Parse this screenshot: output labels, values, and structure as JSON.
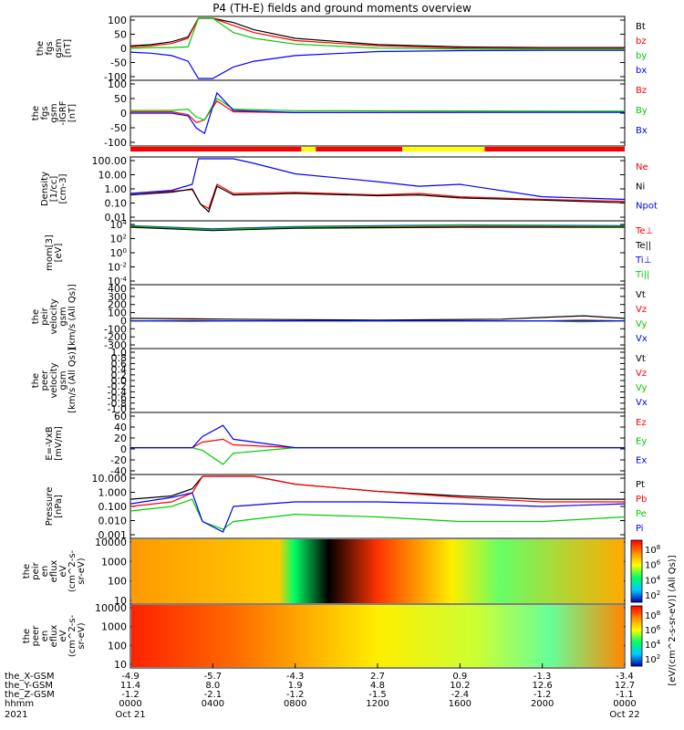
{
  "title": "P4 (TH-E) fields and ground moments overview",
  "chart_data": [
    {
      "type": "line",
      "ylabel": [
        "the",
        "fgs",
        "gsm",
        "[nT]"
      ],
      "yticks": [
        "100",
        "50",
        "0",
        "-50",
        "-100"
      ],
      "ylim": [
        -100,
        110
      ],
      "series": [
        {
          "name": "Bt",
          "color": "#000000",
          "x": [
            0,
            1,
            2,
            2.8,
            3.3,
            4,
            5,
            6,
            8,
            12,
            16,
            20,
            24
          ],
          "y": [
            14,
            18,
            28,
            45,
            110,
            110,
            95,
            70,
            40,
            18,
            10,
            8,
            8
          ]
        },
        {
          "name": "bz",
          "color": "#ff0000",
          "x": [
            0,
            1,
            2,
            2.8,
            3.3,
            4,
            5,
            6,
            8,
            12,
            16,
            20,
            24
          ],
          "y": [
            10,
            14,
            22,
            40,
            110,
            110,
            85,
            60,
            32,
            14,
            6,
            5,
            5
          ]
        },
        {
          "name": "by",
          "color": "#00cc00",
          "x": [
            0,
            1,
            2,
            2.8,
            3.3,
            4,
            5,
            6,
            8,
            12,
            16,
            20,
            24
          ],
          "y": [
            5,
            8,
            8,
            10,
            110,
            110,
            60,
            40,
            20,
            6,
            3,
            2,
            2
          ]
        },
        {
          "name": "bx",
          "color": "#0000ff",
          "x": [
            0,
            1,
            2,
            2.8,
            3.3,
            4,
            5,
            6,
            8,
            12,
            16,
            20,
            24
          ],
          "y": [
            -8,
            -12,
            -20,
            -40,
            -100,
            -100,
            -60,
            -40,
            -20,
            -6,
            -3,
            -2,
            -2
          ]
        }
      ]
    },
    {
      "type": "line",
      "ylabel": [
        "the",
        "fgs",
        "gsm",
        "-IGRF",
        "[nT]"
      ],
      "yticks": [
        "100",
        "50",
        "0",
        "-50",
        "-100"
      ],
      "ylim": [
        -120,
        110
      ],
      "series": [
        {
          "name": "Bz",
          "color": "#ff0000",
          "x": [
            0,
            2,
            2.8,
            3.2,
            3.6,
            4.2,
            5,
            8,
            16,
            24
          ],
          "y": [
            0,
            0,
            -10,
            -40,
            -30,
            40,
            0,
            -3,
            -2,
            -1
          ]
        },
        {
          "name": "By",
          "color": "#00cc00",
          "x": [
            0,
            2,
            2.8,
            3.2,
            3.6,
            4.2,
            5,
            8,
            16,
            24
          ],
          "y": [
            5,
            5,
            10,
            -20,
            -30,
            50,
            10,
            4,
            3,
            2
          ]
        },
        {
          "name": "Bx",
          "color": "#0000ff",
          "x": [
            0,
            2,
            2.8,
            3.2,
            3.6,
            4.2,
            5,
            8,
            16,
            24
          ],
          "y": [
            -5,
            -5,
            -15,
            -60,
            -80,
            70,
            5,
            -3,
            -2,
            -2
          ]
        }
      ]
    },
    {
      "type": "line",
      "ylabel": [
        "Density",
        "[1/cc]",
        "[cm-3]"
      ],
      "yticks": [
        "100.00",
        "10.00",
        "1.00",
        "0.10",
        "0.01"
      ],
      "scale": "log",
      "ylim": [
        0.01,
        100
      ],
      "series": [
        {
          "name": "Ne",
          "color": "#ff0000",
          "x": [
            0,
            2,
            3,
            3.4,
            3.8,
            4.2,
            5,
            8,
            12,
            14,
            16,
            20,
            24
          ],
          "y": [
            0.5,
            0.7,
            0.9,
            0.1,
            0.05,
            2,
            0.5,
            0.6,
            0.4,
            0.5,
            0.3,
            0.2,
            0.15
          ]
        },
        {
          "name": "Ni",
          "color": "#000000",
          "x": [
            0,
            2,
            3,
            3.4,
            3.8,
            4.2,
            5,
            8,
            12,
            14,
            16,
            20,
            24
          ],
          "y": [
            0.4,
            0.6,
            1.0,
            0.1,
            0.03,
            1.5,
            0.4,
            0.5,
            0.35,
            0.4,
            0.25,
            0.18,
            0.12
          ]
        },
        {
          "name": "Npot",
          "color": "#0000ff",
          "x": [
            0,
            2,
            3,
            3.3,
            4,
            5,
            6,
            8,
            12,
            14,
            16,
            20,
            24
          ],
          "y": [
            0.5,
            0.8,
            2,
            100,
            100,
            100,
            50,
            10,
            3,
            1.5,
            2,
            0.3,
            0.2
          ]
        }
      ]
    },
    {
      "type": "line",
      "ylabel": [
        "mom[3]",
        "[eV]"
      ],
      "yticks": [
        "10^4",
        "10^2",
        "10^0",
        "10^-2",
        "10^-4"
      ],
      "scale": "log",
      "ylim": [
        0.0001,
        10000
      ],
      "series": [
        {
          "name": "Te⊥",
          "color": "#ff0000",
          "x": [
            0,
            4,
            8,
            16,
            24
          ],
          "y": [
            3000,
            1000,
            2000,
            3000,
            3000
          ]
        },
        {
          "name": "Te||",
          "color": "#000000",
          "x": [
            0,
            4,
            8,
            16,
            24
          ],
          "y": [
            2500,
            900,
            1800,
            2500,
            2500
          ]
        },
        {
          "name": "Ti⊥",
          "color": "#0000ff",
          "x": [
            0,
            4,
            8,
            16,
            24
          ],
          "y": [
            4000,
            1500,
            3000,
            5000,
            4000
          ]
        },
        {
          "name": "Ti||",
          "color": "#00cc00",
          "x": [
            0,
            4,
            8,
            16,
            24
          ],
          "y": [
            3500,
            1200,
            2500,
            4500,
            3500
          ]
        }
      ]
    },
    {
      "type": "line",
      "ylabel": [
        "the",
        "peir",
        "velocity",
        "gsm",
        "[km/s (All Qs)]"
      ],
      "yticks": [
        "400",
        "300",
        "200",
        "100",
        "0",
        "-100",
        "-200",
        "-300"
      ],
      "ylim": [
        -300,
        400
      ],
      "series": [
        {
          "name": "Vt",
          "color": "#000000",
          "x": [
            0,
            3,
            5,
            8,
            12,
            18,
            20,
            22,
            24
          ],
          "y": [
            30,
            25,
            20,
            15,
            10,
            20,
            40,
            60,
            30
          ]
        },
        {
          "name": "Vz",
          "color": "#ff0000",
          "x": [
            0,
            3,
            5,
            8,
            12,
            18,
            20,
            22,
            24
          ],
          "y": [
            0,
            5,
            0,
            0,
            0,
            0,
            0,
            10,
            0
          ]
        },
        {
          "name": "Vy",
          "color": "#00cc00",
          "x": [
            0,
            3,
            5,
            8,
            12,
            18,
            20,
            22,
            24
          ],
          "y": [
            0,
            -5,
            0,
            0,
            0,
            0,
            0,
            -10,
            0
          ]
        },
        {
          "name": "Vx",
          "color": "#0000ff",
          "x": [
            0,
            3,
            5,
            8,
            12,
            18,
            20,
            22,
            24
          ],
          "y": [
            0,
            0,
            0,
            0,
            0,
            0,
            0,
            0,
            0
          ]
        }
      ]
    },
    {
      "type": "line",
      "ylabel": [
        "the",
        "peer",
        "velocity",
        "gsm",
        "[km/s (All Qs)]"
      ],
      "yticks": [
        "1.0",
        "0.8",
        "0.6",
        "0.4",
        "0.2",
        "0.0",
        "-0.2",
        "-0.4",
        "-0.6",
        "-0.8",
        "-1.0"
      ],
      "ylim": [
        -1,
        1
      ],
      "series": [
        {
          "name": "Vt",
          "color": "#000000",
          "x": [],
          "y": []
        },
        {
          "name": "Vz",
          "color": "#ff0000",
          "x": [],
          "y": []
        },
        {
          "name": "Vy",
          "color": "#00cc00",
          "x": [],
          "y": []
        },
        {
          "name": "Vx",
          "color": "#0000ff",
          "x": [],
          "y": []
        }
      ]
    },
    {
      "type": "line",
      "ylabel": [
        "E=-VxB",
        "[mV/m]"
      ],
      "yticks": [
        "60",
        "40",
        "20",
        "0",
        "-20",
        "-40"
      ],
      "ylim": [
        -45,
        60
      ],
      "series": [
        {
          "name": "Ez",
          "color": "#ff0000",
          "x": [
            0,
            3,
            3.5,
            4.5,
            5,
            8,
            18,
            24
          ],
          "y": [
            0,
            0,
            10,
            15,
            5,
            0,
            0,
            0
          ]
        },
        {
          "name": "Ey",
          "color": "#00cc00",
          "x": [
            0,
            3,
            3.5,
            4.5,
            5,
            8,
            18,
            24
          ],
          "y": [
            0,
            0,
            -5,
            -30,
            -10,
            0,
            0,
            0
          ]
        },
        {
          "name": "Ex",
          "color": "#0000ff",
          "x": [
            0,
            3,
            3.5,
            4.5,
            5,
            8,
            18,
            24
          ],
          "y": [
            0,
            0,
            20,
            40,
            15,
            0,
            0,
            0
          ]
        }
      ]
    },
    {
      "type": "line",
      "ylabel": [
        "Pressure",
        "[nPa]"
      ],
      "yticks": [
        "10.000",
        "1.000",
        "0.100",
        "0.010",
        "0.001"
      ],
      "scale": "log",
      "ylim": [
        0.001,
        10
      ],
      "series": [
        {
          "name": "Pt",
          "color": "#000000",
          "x": [
            0,
            2,
            3,
            3.5,
            4.5,
            5,
            6,
            8,
            12,
            16,
            20,
            24
          ],
          "y": [
            0.3,
            0.5,
            1.5,
            10,
            10,
            10,
            10,
            3,
            1,
            0.5,
            0.3,
            0.3
          ]
        },
        {
          "name": "Pb",
          "color": "#ff0000",
          "x": [
            0,
            2,
            3,
            3.5,
            4.5,
            5,
            6,
            8,
            12,
            16,
            20,
            24
          ],
          "y": [
            0.1,
            0.2,
            0.8,
            10,
            10,
            10,
            10,
            3,
            1,
            0.4,
            0.2,
            0.2
          ]
        },
        {
          "name": "Pe",
          "color": "#00cc00",
          "x": [
            0,
            2,
            3,
            3.5,
            4.5,
            5,
            8,
            12,
            16,
            20,
            24
          ],
          "y": [
            0.05,
            0.1,
            0.3,
            0.01,
            0.003,
            0.01,
            0.03,
            0.02,
            0.01,
            0.01,
            0.02
          ]
        },
        {
          "name": "Pi",
          "color": "#0000ff",
          "x": [
            0,
            2,
            3,
            3.5,
            4.5,
            5,
            8,
            12,
            16,
            20,
            24
          ],
          "y": [
            0.15,
            0.4,
            0.8,
            0.01,
            0.002,
            0.1,
            0.2,
            0.2,
            0.15,
            0.1,
            0.15
          ]
        }
      ]
    },
    {
      "type": "heatmap",
      "ylabel": [
        "the",
        "peir",
        "en",
        "eflux",
        "eV",
        "(cm^2-s-",
        "sr-eV)"
      ],
      "yticks": [
        "10000",
        "1000",
        "100",
        "10"
      ],
      "colorbar_ticks": [
        "10^8",
        "10^6",
        "10^4",
        "10^2"
      ]
    },
    {
      "type": "heatmap",
      "ylabel": [
        "the",
        "peer",
        "en",
        "eflux",
        "eV",
        "(cm^2-s-",
        "sr-eV)"
      ],
      "yticks": [
        "10000",
        "1000",
        "100",
        "10"
      ],
      "colorbar_ticks": [
        "10^8",
        "10^6",
        "10^4",
        "10^2"
      ]
    }
  ],
  "colorbar_label": "[eV/(cm^2-s-sr-eV)] (All Qs)]",
  "mode_bar": {
    "segments": [
      {
        "color": "#ff0000",
        "from": 0,
        "to": 8.3
      },
      {
        "color": "#ffff00",
        "from": 8.3,
        "to": 9.0
      },
      {
        "color": "#ff0000",
        "from": 9.0,
        "to": 13.2
      },
      {
        "color": "#ffff00",
        "from": 13.2,
        "to": 17.2
      },
      {
        "color": "#ff0000",
        "from": 17.2,
        "to": 24
      }
    ]
  },
  "x_axis": {
    "rows": [
      {
        "label": "the_X-GSM",
        "values": [
          "-4.9",
          "-5.7",
          "-4.3",
          "2.7",
          "0.9",
          "-1.3",
          "-3.4"
        ]
      },
      {
        "label": "the_Y-GSM",
        "values": [
          "11.4",
          "8.0",
          "1.9",
          "4.8",
          "10.2",
          "12.6",
          "12.7"
        ]
      },
      {
        "label": "the_Z-GSM",
        "values": [
          "-1.2",
          "-2.1",
          "-1.2",
          "-1.5",
          "-2.4",
          "-1.2",
          "-1.1"
        ]
      },
      {
        "label": "hhmm",
        "values": [
          "0000",
          "0400",
          "0800",
          "1200",
          "1600",
          "2000",
          "0000"
        ]
      }
    ],
    "year": "2021",
    "date_start": "Oct 21",
    "date_end": "Oct 22"
  }
}
